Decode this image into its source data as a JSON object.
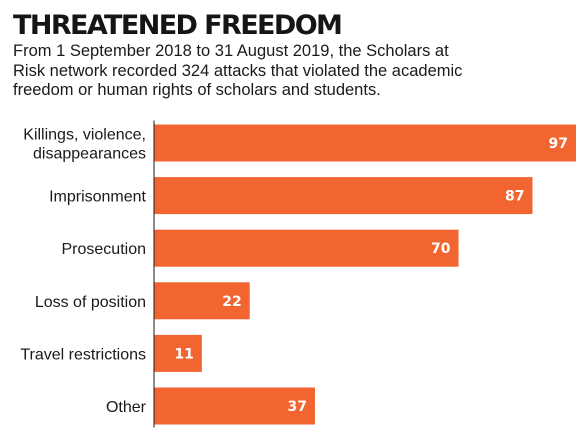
{
  "header": {
    "title": "THREATENED FREEDOM",
    "subtitle": "From 1 September 2018 to 31 August 2019, the Scholars at Risk network recorded 324 attacks that violated the academic freedom or human rights of scholars and students."
  },
  "colors": {
    "bar": "#f26530",
    "value_text": "#ffffff",
    "axis": "#1a1a1a"
  },
  "chart_data": {
    "type": "bar",
    "orientation": "horizontal",
    "categories": [
      [
        "Killings, violence,",
        "disappearances"
      ],
      [
        "Imprisonment"
      ],
      [
        "Prosecution"
      ],
      [
        "Loss of position"
      ],
      [
        "Travel restrictions"
      ],
      [
        "Other"
      ]
    ],
    "values": [
      97,
      87,
      70,
      22,
      11,
      37
    ],
    "title": "THREATENED FREEDOM",
    "xlabel": "",
    "ylabel": "",
    "xlim": [
      0,
      97
    ],
    "data_labels": true,
    "grid": false,
    "legend": "none"
  }
}
